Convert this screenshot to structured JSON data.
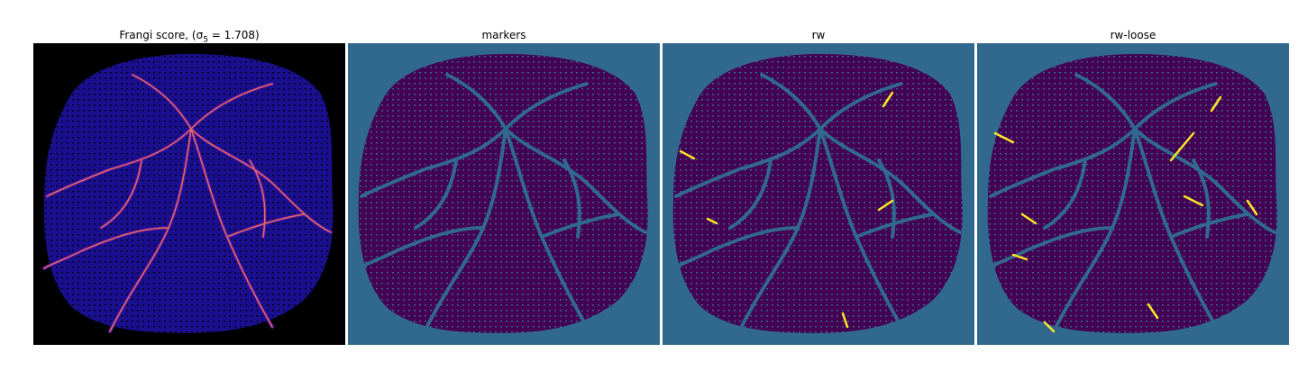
{
  "panels": [
    {
      "title": "Frangi score, (σ",
      "title_sub": "5",
      "title_tail": " = 1.708)",
      "background": "#000000",
      "tissue": "#1a0f8f",
      "highlight": "#e96b5f"
    },
    {
      "title": "markers",
      "background": "#31688e",
      "tissue": "#440154",
      "highlight": "#1f9e89"
    },
    {
      "title": "rw",
      "background": "#31688e",
      "tissue": "#440154",
      "highlight": "#fde725"
    },
    {
      "title": "rw-loose",
      "background": "#31688e",
      "tissue": "#440154",
      "highlight": "#fde725"
    }
  ],
  "colormaps": {
    "frangi": "magma",
    "segmentation": "viridis"
  }
}
